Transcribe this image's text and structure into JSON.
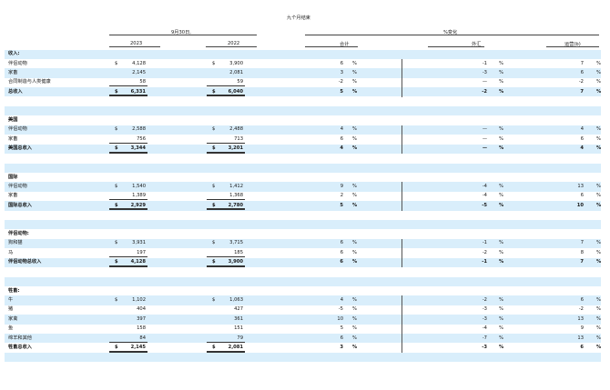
{
  "header": {
    "nine_months": "九个月结束",
    "sept30": "9月30日,",
    "pct_change": "%变化",
    "col_2023": "2023",
    "col_2022": "2022",
    "col_total": "合计",
    "col_fx": "外汇",
    "col_operational": "运营(b)"
  },
  "rows": [
    {
      "kind": "section",
      "label": "收入:",
      "blue": true
    },
    {
      "kind": "data",
      "label": "伴侣动物",
      "d1": "$",
      "v2023": "4,128",
      "d2": "$",
      "v2022": "3,900",
      "total": "6",
      "fx": "-1",
      "op": "7",
      "blue": false
    },
    {
      "kind": "data",
      "label": "家畜",
      "d1": "",
      "v2023": "2,145",
      "d2": "",
      "v2022": "2,081",
      "total": "3",
      "fx": "-3",
      "op": "6",
      "blue": true
    },
    {
      "kind": "data",
      "label": "合同制造与人类健康",
      "d1": "",
      "v2023": "58",
      "d2": "",
      "v2022": "59",
      "total": "-2",
      "fx": "—",
      "op": "-2",
      "blue": false,
      "ul": true
    },
    {
      "kind": "total",
      "label": "总收入",
      "d1": "$",
      "v2023": "6,331",
      "d2": "$",
      "v2022": "6,040",
      "total": "5",
      "fx": "-2",
      "op": "7",
      "blue": true
    },
    {
      "kind": "blank",
      "blue": false
    },
    {
      "kind": "blank",
      "blue": true
    },
    {
      "kind": "section",
      "label": "美国",
      "blue": false
    },
    {
      "kind": "data",
      "label": "伴侣动物",
      "d1": "$",
      "v2023": "2,588",
      "d2": "$",
      "v2022": "2,488",
      "total": "4",
      "fx": "—",
      "op": "4",
      "blue": true
    },
    {
      "kind": "data",
      "label": "家畜",
      "d1": "",
      "v2023": "756",
      "d2": "",
      "v2022": "713",
      "total": "6",
      "fx": "—",
      "op": "6",
      "blue": false,
      "ul": true
    },
    {
      "kind": "total",
      "label": "美国总收入",
      "d1": "$",
      "v2023": "3,344",
      "d2": "$",
      "v2022": "3,201",
      "total": "4",
      "fx": "—",
      "op": "4",
      "blue": true
    },
    {
      "kind": "blank",
      "blue": false
    },
    {
      "kind": "blank",
      "blue": true
    },
    {
      "kind": "section",
      "label": "国际",
      "blue": false
    },
    {
      "kind": "data",
      "label": "伴侣动物",
      "d1": "$",
      "v2023": "1,540",
      "d2": "$",
      "v2022": "1,412",
      "total": "9",
      "fx": "-4",
      "op": "13",
      "blue": true
    },
    {
      "kind": "data",
      "label": "家畜",
      "d1": "",
      "v2023": "1,389",
      "d2": "",
      "v2022": "1,368",
      "total": "2",
      "fx": "-4",
      "op": "6",
      "blue": false,
      "ul": true
    },
    {
      "kind": "total",
      "label": "国际总收入",
      "d1": "$",
      "v2023": "2,929",
      "d2": "$",
      "v2022": "2,780",
      "total": "5",
      "fx": "-5",
      "op": "10",
      "blue": true
    },
    {
      "kind": "blank",
      "blue": false
    },
    {
      "kind": "blank",
      "blue": true
    },
    {
      "kind": "section",
      "label": "伴侣动物:",
      "blue": false
    },
    {
      "kind": "data",
      "label": "狗和猫",
      "d1": "$",
      "v2023": "3,931",
      "d2": "$",
      "v2022": "3,715",
      "total": "6",
      "fx": "-1",
      "op": "7",
      "blue": true
    },
    {
      "kind": "data",
      "label": "马",
      "d1": "",
      "v2023": "197",
      "d2": "",
      "v2022": "185",
      "total": "6",
      "fx": "-2",
      "op": "8",
      "blue": false,
      "ul": true
    },
    {
      "kind": "total",
      "label": "伴侣动物总收入",
      "d1": "$",
      "v2023": "4,128",
      "d2": "$",
      "v2022": "3,900",
      "total": "6",
      "fx": "-1",
      "op": "7",
      "blue": true
    },
    {
      "kind": "blank",
      "blue": false
    },
    {
      "kind": "blank",
      "blue": true
    },
    {
      "kind": "section",
      "label": "牲畜:",
      "blue": false
    },
    {
      "kind": "data",
      "label": "牛",
      "d1": "$",
      "v2023": "1,102",
      "d2": "$",
      "v2022": "1,063",
      "total": "4",
      "fx": "-2",
      "op": "6",
      "blue": true
    },
    {
      "kind": "data",
      "label": "猪",
      "d1": "",
      "v2023": "404",
      "d2": "",
      "v2022": "427",
      "total": "-5",
      "fx": "-3",
      "op": "-2",
      "blue": false
    },
    {
      "kind": "data",
      "label": "家禽",
      "d1": "",
      "v2023": "397",
      "d2": "",
      "v2022": "361",
      "total": "10",
      "fx": "-3",
      "op": "13",
      "blue": true
    },
    {
      "kind": "data",
      "label": "鱼",
      "d1": "",
      "v2023": "158",
      "d2": "",
      "v2022": "151",
      "total": "5",
      "fx": "-4",
      "op": "9",
      "blue": false
    },
    {
      "kind": "data",
      "label": "绵羊和其他",
      "d1": "",
      "v2023": "84",
      "d2": "",
      "v2022": "79",
      "total": "6",
      "fx": "-7",
      "op": "13",
      "blue": true,
      "ul": true
    },
    {
      "kind": "total",
      "label": "牲畜总收入",
      "d1": "$",
      "v2023": "2,145",
      "d2": "$",
      "v2022": "2,081",
      "total": "3",
      "fx": "-3",
      "op": "6",
      "blue": false
    },
    {
      "kind": "blank",
      "blue": true
    }
  ],
  "pct_symbol": "%"
}
